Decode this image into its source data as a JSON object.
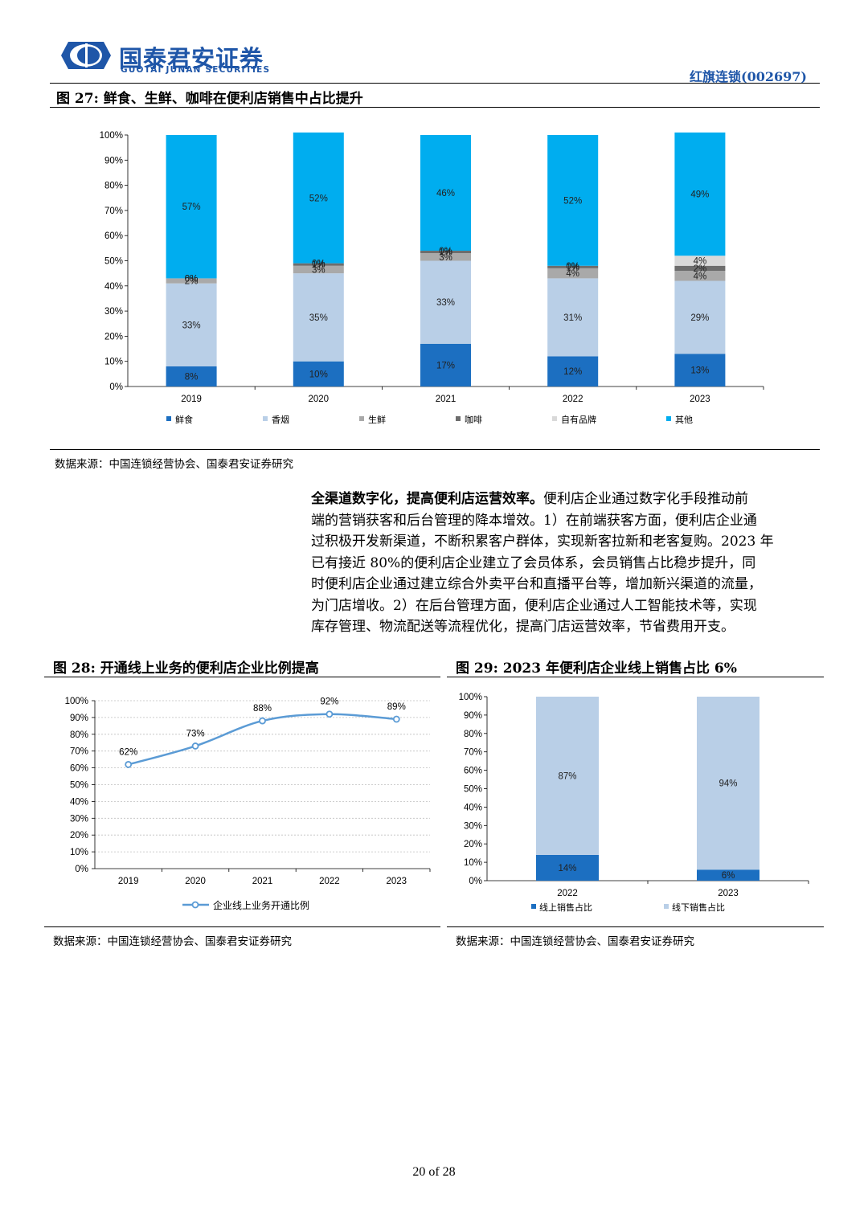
{
  "header": {
    "company_cn": "国泰君安证券",
    "company_en": "GUOTAI JUNAN SECURITIES",
    "report_subject": "红旗连锁(002697)"
  },
  "fig27": {
    "title": "图 27:  鲜食、生鲜、咖啡在便利店销售中占比提升",
    "source": "数据来源：中国连锁经营协会、国泰君安证券研究",
    "chart_data": {
      "type": "bar",
      "stacked": true,
      "categories": [
        "2019",
        "2020",
        "2021",
        "2022",
        "2023"
      ],
      "ylim": [
        0,
        100
      ],
      "yticks": [
        "0%",
        "10%",
        "20%",
        "30%",
        "40%",
        "50%",
        "60%",
        "70%",
        "80%",
        "90%",
        "100%"
      ],
      "legend_position": "bottom",
      "series": [
        {
          "name": "鲜食",
          "color": "#1c6fc1",
          "values": [
            8,
            10,
            17,
            12,
            13
          ]
        },
        {
          "name": "香烟",
          "color": "#b9cfe7",
          "values": [
            33,
            35,
            33,
            31,
            29
          ]
        },
        {
          "name": "生鲜",
          "color": "#a9a9a9",
          "values": [
            2,
            3,
            3,
            4,
            4
          ]
        },
        {
          "name": "咖啡",
          "color": "#6d6d6d",
          "values": [
            0,
            1,
            1,
            1,
            2
          ]
        },
        {
          "name": "自有品牌",
          "color": "#d9d9d9",
          "values": [
            0,
            0,
            0,
            0,
            4
          ]
        },
        {
          "name": "其他",
          "color": "#00adef",
          "values": [
            57,
            52,
            46,
            52,
            49
          ]
        }
      ],
      "labels": [
        [
          "8%",
          "33%",
          "2%",
          "0%",
          "0%",
          "57%"
        ],
        [
          "10%",
          "35%",
          "3%",
          "1%",
          "0%",
          "52%"
        ],
        [
          "17%",
          "33%",
          "3%",
          "1%",
          "0%",
          "46%"
        ],
        [
          "12%",
          "31%",
          "4%",
          "1%",
          "0%",
          "52%"
        ],
        [
          "13%",
          "29%",
          "4%",
          "2%",
          "4%",
          "49%"
        ]
      ]
    }
  },
  "paragraph": {
    "lead": "全渠道数字化，提高便利店运营效率。",
    "lines": [
      "便利店企业通过数字化手段推动前",
      "端的营销获客和后台管理的降本增效。1）在前端获客方面，便利店企业通",
      "过积极开发新渠道，不断积累客户群体，实现新客拉新和老客复购。2023 年",
      "已有接近 80%的便利店企业建立了会员体系，会员销售占比稳步提升，同",
      "时便利店企业通过建立综合外卖平台和直播平台等，增加新兴渠道的流量，",
      "为门店增收。2）在后台管理方面，便利店企业通过人工智能技术等，实现",
      "库存管理、物流配送等流程优化，提高门店运营效率，节省费用开支。"
    ]
  },
  "fig28": {
    "title": "图 28:  开通线上业务的便利店企业比例提高",
    "source": "数据来源：中国连锁经营协会、国泰君安证券研究",
    "chart_data": {
      "type": "line",
      "x": [
        "2019",
        "2020",
        "2021",
        "2022",
        "2023"
      ],
      "ylim": [
        0,
        100
      ],
      "yticks": [
        "0%",
        "10%",
        "20%",
        "30%",
        "40%",
        "50%",
        "60%",
        "70%",
        "80%",
        "90%",
        "100%"
      ],
      "grid": true,
      "legend_position": "bottom",
      "series": [
        {
          "name": "企业线上业务开通比例",
          "color": "#5b9bd5",
          "values": [
            62,
            73,
            88,
            92,
            89
          ],
          "labels": [
            "62%",
            "73%",
            "88%",
            "92%",
            "89%"
          ]
        }
      ]
    }
  },
  "fig29": {
    "title": "图 29:  2023 年便利店企业线上销售占比 6%",
    "source": "数据来源：中国连锁经营协会、国泰君安证券研究",
    "chart_data": {
      "type": "bar",
      "stacked": true,
      "categories": [
        "2022",
        "2023"
      ],
      "ylim": [
        0,
        100
      ],
      "yticks": [
        "0%",
        "10%",
        "20%",
        "30%",
        "40%",
        "50%",
        "60%",
        "70%",
        "80%",
        "90%",
        "100%"
      ],
      "legend_position": "bottom",
      "series": [
        {
          "name": "线上销售占比",
          "color": "#1c6fc1",
          "values": [
            14,
            6
          ],
          "labels": [
            "14%",
            "6%"
          ]
        },
        {
          "name": "线下销售占比",
          "color": "#b9cfe7",
          "values": [
            87,
            94
          ],
          "labels": [
            "87%",
            "94%"
          ]
        }
      ]
    }
  },
  "footer": {
    "page": "20 of 28"
  }
}
